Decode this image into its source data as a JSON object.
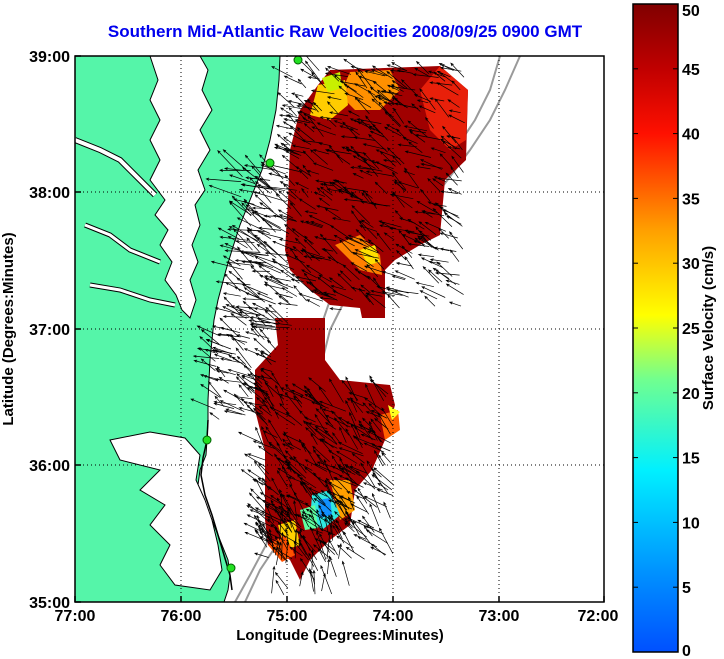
{
  "title": "Southern Mid-Atlantic Raw Velocities 2008/09/25 0900 GMT",
  "map": {
    "xlabel": "Longitude (Degrees:Minutes)",
    "ylabel": "Latitude (Degrees:Minutes)",
    "x_ticks": [
      "77:00",
      "76:00",
      "75:00",
      "74:00",
      "73:00",
      "72:00"
    ],
    "y_ticks": [
      "39:00",
      "38:00",
      "37:00",
      "36:00",
      "35:00"
    ],
    "land_color": "#55f5a9",
    "grid": "dotted"
  },
  "colorbar": {
    "label": "Surface Velocity (cm/s)",
    "ticks": [
      "50",
      "45",
      "40",
      "35",
      "30",
      "25",
      "20",
      "15",
      "10",
      "5",
      "0"
    ],
    "min": 0,
    "max": 50,
    "colormap": "jet"
  }
}
